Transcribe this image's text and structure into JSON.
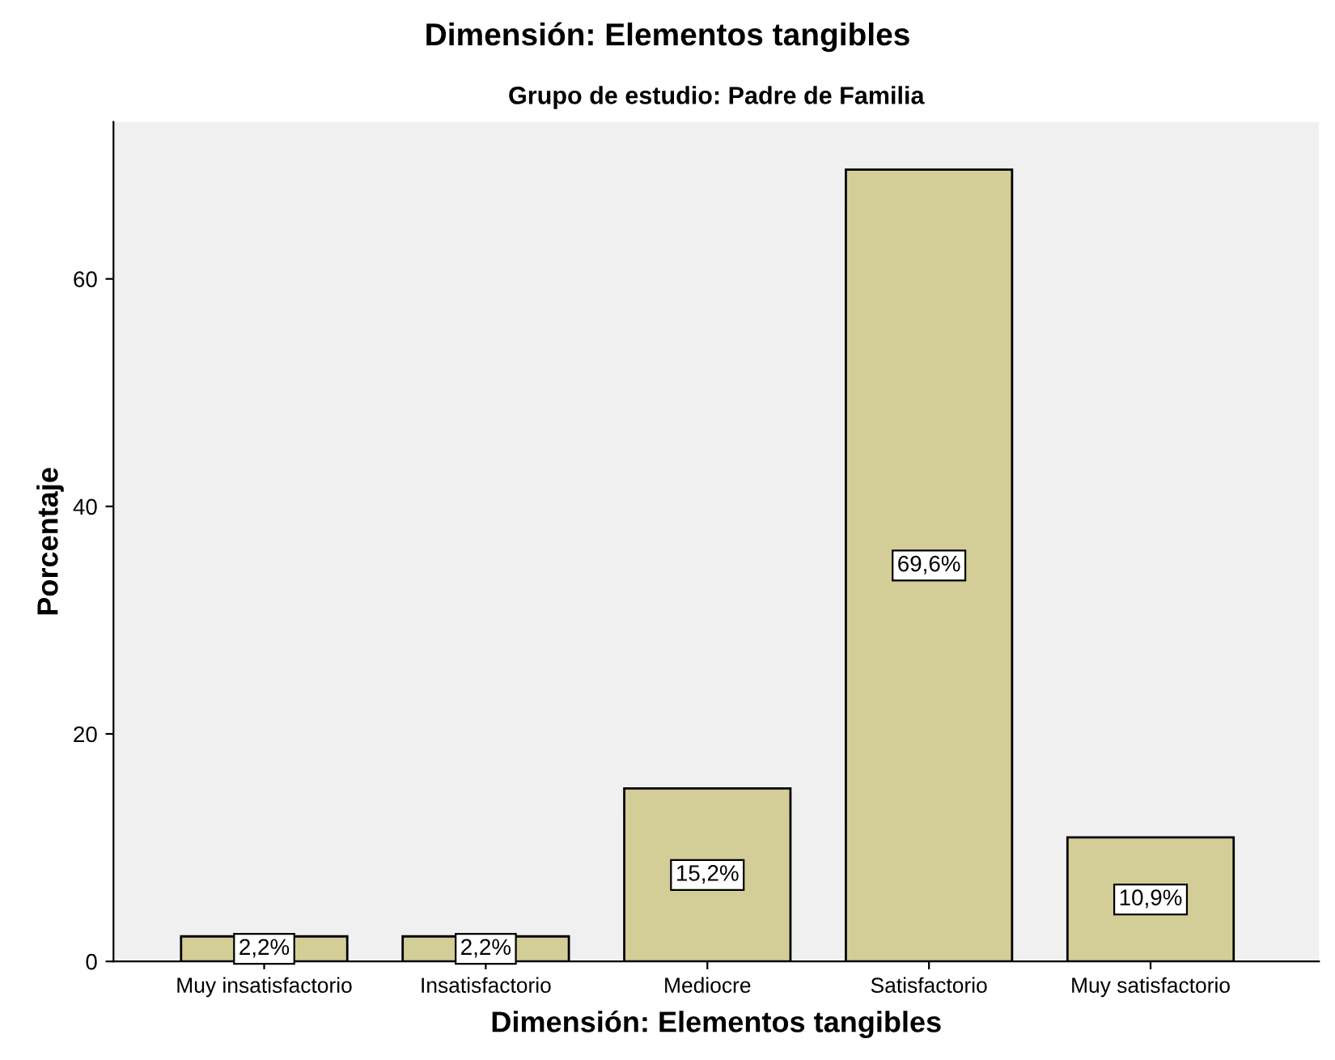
{
  "chart_data": {
    "type": "bar",
    "title": "Dimensión: Elementos tangibles",
    "subtitle": "Grupo de estudio: Padre de Familia",
    "xlabel": "Dimensión: Elementos tangibles",
    "ylabel": "Porcentaje",
    "categories": [
      "Muy insatisfactorio",
      "Insatisfactorio",
      "Mediocre",
      "Satisfactorio",
      "Muy satisfactorio"
    ],
    "values": [
      2.2,
      2.2,
      15.2,
      69.6,
      10.9
    ],
    "value_labels": [
      "2,2%",
      "2,2%",
      "15,2%",
      "69,6%",
      "10,9%"
    ],
    "color": "#d3ce98",
    "ylim": [
      0,
      73.8
    ],
    "yticks": [
      0,
      20,
      40,
      60
    ],
    "grid": false,
    "legend": false
  }
}
